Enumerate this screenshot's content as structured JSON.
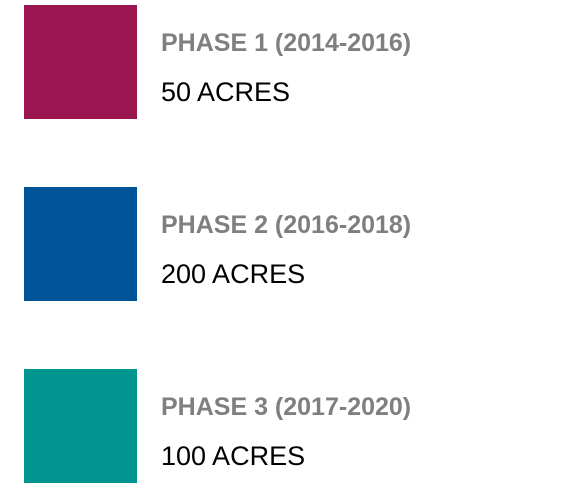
{
  "items": [
    {
      "title": "PHASE 1 (2014-2016)",
      "detail": "50 ACRES",
      "color": "#9b1550"
    },
    {
      "title": "PHASE 2 (2016-2018)",
      "detail": "200 ACRES",
      "color": "#005396"
    },
    {
      "title": "PHASE 3 (2017-2020)",
      "detail": "100 ACRES",
      "color": "#00958f"
    }
  ]
}
